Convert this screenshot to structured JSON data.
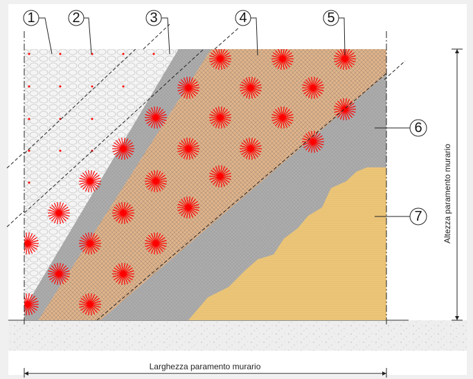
{
  "callouts": [
    {
      "id": "1",
      "label": "1"
    },
    {
      "id": "2",
      "label": "2"
    },
    {
      "id": "3",
      "label": "3"
    },
    {
      "id": "4",
      "label": "4"
    },
    {
      "id": "5",
      "label": "5"
    },
    {
      "id": "6",
      "label": "6"
    },
    {
      "id": "7",
      "label": "7"
    }
  ],
  "dimensions": {
    "width_label": "Larghezza paramento murario",
    "height_label": "Altezza paramento murario"
  },
  "colors": {
    "stone_zone": "#f2f2f2",
    "grey_layer": "#a9a9a9",
    "fiber_mesh_layer": "#e6b88e",
    "mesh_lines": "#9a8a78",
    "connector_red": "#ff0000",
    "plaster_yellow": "#ecc679",
    "ground": "#ececec"
  }
}
